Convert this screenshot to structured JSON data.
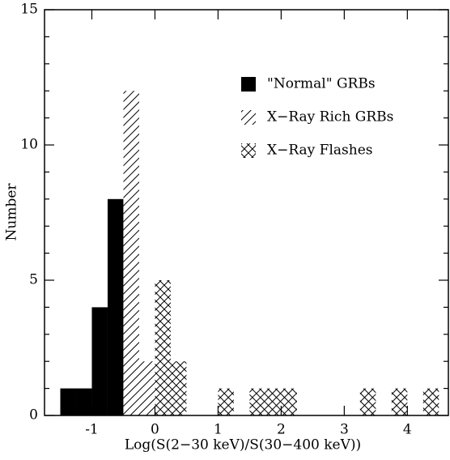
{
  "chart_data": {
    "type": "histogram",
    "x_label": "Log(S(2−30 keV)/S(30−400 keV))",
    "y_label": "Number",
    "bins": [
      -1.5,
      -1.25,
      -1.0,
      -0.75,
      -0.5,
      -0.25,
      0.0,
      0.25,
      0.5,
      0.75,
      1.0,
      1.25,
      1.5,
      1.75,
      2.0,
      2.25,
      2.5,
      2.75,
      3.0,
      3.25,
      3.5,
      3.75,
      4.0,
      4.25,
      4.5
    ],
    "series": [
      {
        "name": "\"Normal\" GRBs",
        "color": "#000000",
        "pattern": "solid",
        "values": [
          1,
          1,
          4,
          8,
          0,
          0,
          0,
          0,
          0,
          0,
          0,
          0,
          0,
          0,
          0,
          0,
          0,
          0,
          0,
          0,
          0,
          0,
          0,
          0
        ]
      },
      {
        "name": "X−Ray Rich GRBs",
        "color": "#000000",
        "pattern": "hatch",
        "values": [
          0,
          0,
          0,
          0,
          12,
          2,
          0,
          0,
          0,
          0,
          0,
          0,
          0,
          0,
          0,
          0,
          0,
          0,
          0,
          0,
          0,
          0,
          0,
          0
        ]
      },
      {
        "name": "X−Ray Flashes",
        "color": "#000000",
        "pattern": "crosshatch",
        "values": [
          0,
          0,
          0,
          0,
          0,
          0,
          5,
          2,
          0,
          0,
          1,
          0,
          1,
          1,
          1,
          0,
          0,
          0,
          0,
          1,
          0,
          1,
          0,
          1
        ]
      }
    ],
    "xlim": [
      -1.75,
      4.65
    ],
    "ylim": [
      0,
      15
    ],
    "xticks": [
      -1,
      0,
      1,
      2,
      3,
      4
    ],
    "yticks": [
      0,
      5,
      10,
      15
    ],
    "yminorticks": [
      1,
      2,
      3,
      4,
      6,
      7,
      8,
      9,
      11,
      12,
      13,
      14
    ],
    "legend": "upper right"
  }
}
